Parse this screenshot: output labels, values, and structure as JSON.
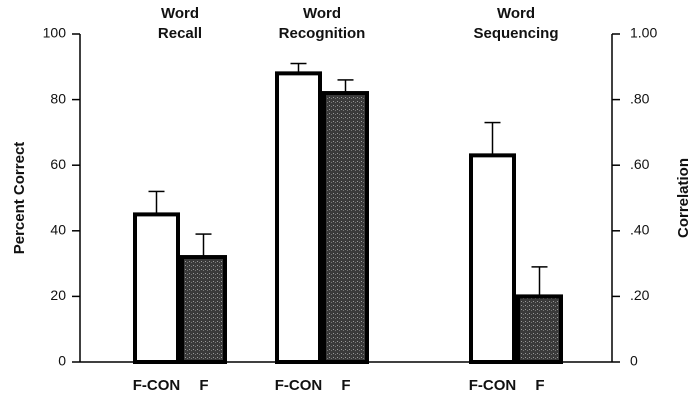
{
  "chart_data": {
    "type": "bar",
    "categories": [
      [
        "Word",
        "Recall"
      ],
      [
        "Word",
        "Recognition"
      ],
      [
        "Word",
        "Sequencing"
      ]
    ],
    "category_axes": [
      "y",
      "y",
      "y2"
    ],
    "series": [
      {
        "name": "F-CON",
        "color": "#ffffff",
        "values": [
          45,
          88,
          0.63
        ],
        "errors": [
          7,
          3,
          0.1
        ]
      },
      {
        "name": "F",
        "color": "#4a4a4a",
        "values": [
          32,
          82,
          0.2
        ],
        "errors": [
          7,
          4,
          0.09
        ]
      }
    ],
    "ylabel": "Percent Correct",
    "ylim": [
      0,
      100
    ],
    "yticks": [
      0,
      20,
      40,
      60,
      80,
      100
    ],
    "y2label": "Correlation",
    "y2lim": [
      0,
      1
    ],
    "y2ticks": [
      0,
      {
        "value": 0.2,
        "label": ".20"
      },
      {
        "value": 0.4,
        "label": ".40"
      },
      {
        "value": 0.6,
        "label": ".60"
      },
      {
        "value": 0.8,
        "label": ".80"
      },
      {
        "value": 1,
        "label": "1.00"
      }
    ]
  }
}
